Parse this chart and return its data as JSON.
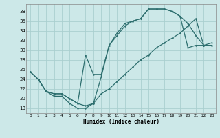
{
  "xlabel": "Humidex (Indice chaleur)",
  "bg_color": "#cce8e8",
  "grid_color": "#aacfcf",
  "line_color": "#2d6e6e",
  "xlim": [
    -0.5,
    23.5
  ],
  "ylim": [
    17,
    39.5
  ],
  "xticks": [
    0,
    1,
    2,
    3,
    4,
    5,
    6,
    7,
    8,
    9,
    10,
    11,
    12,
    13,
    14,
    15,
    16,
    17,
    18,
    19,
    20,
    21,
    22,
    23
  ],
  "yticks": [
    18,
    20,
    22,
    24,
    26,
    28,
    30,
    32,
    34,
    36,
    38
  ],
  "line1_x": [
    0,
    1,
    2,
    3,
    4,
    5,
    6,
    7,
    8,
    9,
    10,
    11,
    12,
    13,
    14,
    15,
    16,
    17,
    18,
    19,
    20,
    21,
    22,
    23
  ],
  "line1_y": [
    25.5,
    24.0,
    21.5,
    20.5,
    20.5,
    19.0,
    18.0,
    18.0,
    19.0,
    24.5,
    31.0,
    33.5,
    35.5,
    36.0,
    36.5,
    38.5,
    38.5,
    38.5,
    38.0,
    37.0,
    35.5,
    33.0,
    31.0,
    31.0
  ],
  "line2_x": [
    0,
    1,
    2,
    3,
    4,
    5,
    6,
    7,
    8,
    9,
    10,
    11,
    12,
    13,
    14,
    15,
    16,
    17,
    18,
    19,
    20,
    21,
    22,
    23
  ],
  "line2_y": [
    25.5,
    24.0,
    21.5,
    21.0,
    21.0,
    20.0,
    19.0,
    29.0,
    25.0,
    25.0,
    31.0,
    33.0,
    35.0,
    36.0,
    36.5,
    38.5,
    38.5,
    38.5,
    38.0,
    37.0,
    30.5,
    31.0,
    31.0,
    31.0
  ],
  "line3_x": [
    1,
    2,
    3,
    4,
    5,
    6,
    7,
    8,
    9,
    10,
    11,
    12,
    13,
    14,
    15,
    16,
    17,
    18,
    19,
    20,
    21,
    22,
    23
  ],
  "line3_y": [
    24.0,
    21.5,
    21.0,
    21.0,
    20.0,
    19.0,
    18.5,
    19.0,
    21.0,
    22.0,
    23.5,
    25.0,
    26.5,
    28.0,
    29.0,
    30.5,
    31.5,
    32.5,
    33.5,
    35.0,
    36.5,
    31.0,
    31.5
  ]
}
